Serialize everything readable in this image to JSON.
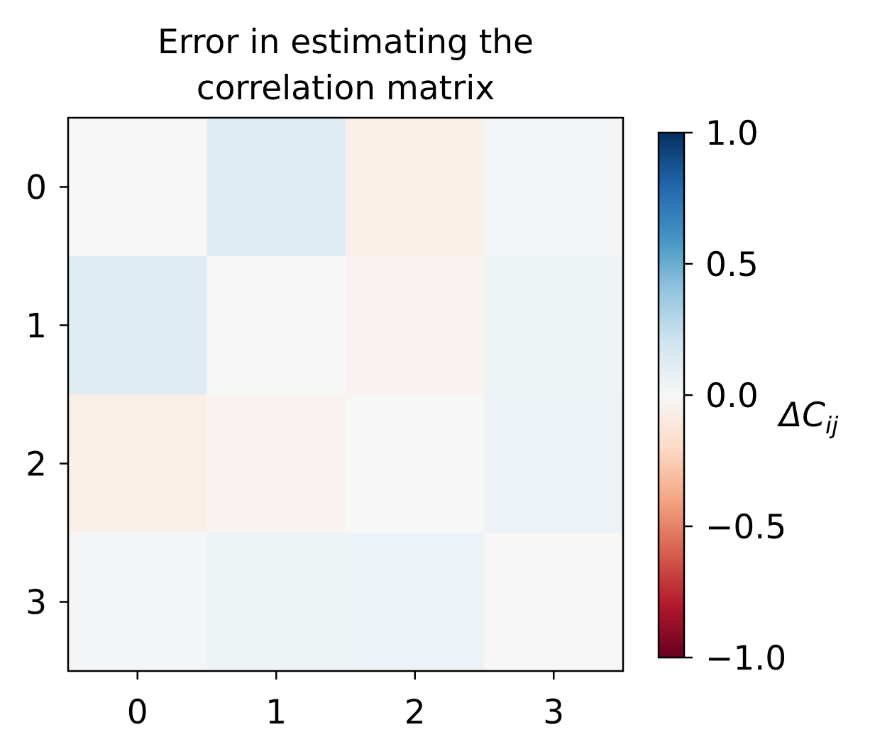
{
  "chart_data": {
    "type": "heatmap",
    "title_lines": [
      "Error in estimating the",
      "correlation matrix"
    ],
    "x_categories": [
      "0",
      "1",
      "2",
      "3"
    ],
    "y_categories": [
      "0",
      "1",
      "2",
      "3"
    ],
    "values": [
      [
        0.0,
        0.12,
        -0.06,
        0.02
      ],
      [
        0.12,
        0.0,
        -0.03,
        0.05
      ],
      [
        -0.06,
        -0.03,
        0.0,
        0.06
      ],
      [
        0.02,
        0.05,
        0.06,
        0.0
      ]
    ],
    "colormap": "RdBu",
    "color_range": [
      -1.0,
      1.0
    ],
    "colorbar": {
      "ticks": [
        1.0,
        0.5,
        0.0,
        -0.5,
        -1.0
      ],
      "tick_labels": [
        "1.0",
        "0.5",
        "0.0",
        "−0.5",
        "−1.0"
      ],
      "label_main": "ΔC",
      "label_sub": "ij"
    }
  }
}
